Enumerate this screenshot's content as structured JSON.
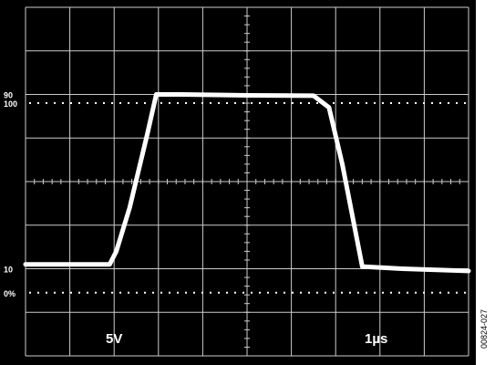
{
  "chart_data": {
    "type": "line",
    "title": "",
    "xlabel": "",
    "ylabel": "",
    "grid": true,
    "grid_divisions": {
      "x": 10,
      "y": 8
    },
    "xlim": [
      0,
      10
    ],
    "ylim": [
      -4,
      4
    ],
    "level_markers": [
      {
        "label": "100",
        "y": 1.8
      },
      {
        "label": "90",
        "y": 2.0
      },
      {
        "label": "10",
        "y": -2.0
      },
      {
        "label": "0%",
        "y": -2.55
      }
    ],
    "scale_labels": {
      "volts_per_div": "5V",
      "time_per_div": "1µs"
    },
    "series": [
      {
        "x": [
          0.0,
          1.9,
          2.05,
          2.35,
          2.75,
          2.95,
          3.5,
          5.0,
          6.5,
          6.85,
          7.15,
          7.6,
          8.5,
          10.0
        ],
        "y": [
          -1.9,
          -1.9,
          -1.6,
          -0.6,
          1.1,
          2.0,
          2.0,
          1.98,
          1.97,
          1.7,
          0.4,
          -1.95,
          -2.0,
          -2.05
        ]
      }
    ],
    "colors": {
      "background": "#000000",
      "grid": "#cccccc",
      "trace": "#ffffff",
      "frame": "#000000"
    }
  },
  "figure_code": "00824-027"
}
